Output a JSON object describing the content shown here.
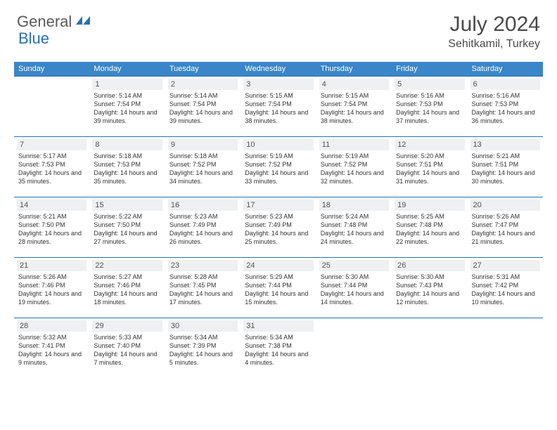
{
  "logo": {
    "main": "General",
    "sub": "Blue"
  },
  "title": "July 2024",
  "location": "Sehitkamil, Turkey",
  "colors": {
    "header_bg": "#3a86c8",
    "header_text": "#ffffff",
    "rule": "#2a6fb5",
    "daynum_bg": "#eef0f2",
    "body_text": "#333333",
    "logo_main": "#5a5a5a",
    "logo_sub": "#2a6fb5"
  },
  "weekdays": [
    "Sunday",
    "Monday",
    "Tuesday",
    "Wednesday",
    "Thursday",
    "Friday",
    "Saturday"
  ],
  "weeks": [
    [
      null,
      {
        "n": "1",
        "sr": "5:14 AM",
        "ss": "7:54 PM",
        "dl": "14 hours and 39 minutes."
      },
      {
        "n": "2",
        "sr": "5:14 AM",
        "ss": "7:54 PM",
        "dl": "14 hours and 39 minutes."
      },
      {
        "n": "3",
        "sr": "5:15 AM",
        "ss": "7:54 PM",
        "dl": "14 hours and 38 minutes."
      },
      {
        "n": "4",
        "sr": "5:15 AM",
        "ss": "7:54 PM",
        "dl": "14 hours and 38 minutes."
      },
      {
        "n": "5",
        "sr": "5:16 AM",
        "ss": "7:53 PM",
        "dl": "14 hours and 37 minutes."
      },
      {
        "n": "6",
        "sr": "5:16 AM",
        "ss": "7:53 PM",
        "dl": "14 hours and 36 minutes."
      }
    ],
    [
      {
        "n": "7",
        "sr": "5:17 AM",
        "ss": "7:53 PM",
        "dl": "14 hours and 35 minutes."
      },
      {
        "n": "8",
        "sr": "5:18 AM",
        "ss": "7:53 PM",
        "dl": "14 hours and 35 minutes."
      },
      {
        "n": "9",
        "sr": "5:18 AM",
        "ss": "7:52 PM",
        "dl": "14 hours and 34 minutes."
      },
      {
        "n": "10",
        "sr": "5:19 AM",
        "ss": "7:52 PM",
        "dl": "14 hours and 33 minutes."
      },
      {
        "n": "11",
        "sr": "5:19 AM",
        "ss": "7:52 PM",
        "dl": "14 hours and 32 minutes."
      },
      {
        "n": "12",
        "sr": "5:20 AM",
        "ss": "7:51 PM",
        "dl": "14 hours and 31 minutes."
      },
      {
        "n": "13",
        "sr": "5:21 AM",
        "ss": "7:51 PM",
        "dl": "14 hours and 30 minutes."
      }
    ],
    [
      {
        "n": "14",
        "sr": "5:21 AM",
        "ss": "7:50 PM",
        "dl": "14 hours and 28 minutes."
      },
      {
        "n": "15",
        "sr": "5:22 AM",
        "ss": "7:50 PM",
        "dl": "14 hours and 27 minutes."
      },
      {
        "n": "16",
        "sr": "5:23 AM",
        "ss": "7:49 PM",
        "dl": "14 hours and 26 minutes."
      },
      {
        "n": "17",
        "sr": "5:23 AM",
        "ss": "7:49 PM",
        "dl": "14 hours and 25 minutes."
      },
      {
        "n": "18",
        "sr": "5:24 AM",
        "ss": "7:48 PM",
        "dl": "14 hours and 24 minutes."
      },
      {
        "n": "19",
        "sr": "5:25 AM",
        "ss": "7:48 PM",
        "dl": "14 hours and 22 minutes."
      },
      {
        "n": "20",
        "sr": "5:26 AM",
        "ss": "7:47 PM",
        "dl": "14 hours and 21 minutes."
      }
    ],
    [
      {
        "n": "21",
        "sr": "5:26 AM",
        "ss": "7:46 PM",
        "dl": "14 hours and 19 minutes."
      },
      {
        "n": "22",
        "sr": "5:27 AM",
        "ss": "7:46 PM",
        "dl": "14 hours and 18 minutes."
      },
      {
        "n": "23",
        "sr": "5:28 AM",
        "ss": "7:45 PM",
        "dl": "14 hours and 17 minutes."
      },
      {
        "n": "24",
        "sr": "5:29 AM",
        "ss": "7:44 PM",
        "dl": "14 hours and 15 minutes."
      },
      {
        "n": "25",
        "sr": "5:30 AM",
        "ss": "7:44 PM",
        "dl": "14 hours and 14 minutes."
      },
      {
        "n": "26",
        "sr": "5:30 AM",
        "ss": "7:43 PM",
        "dl": "14 hours and 12 minutes."
      },
      {
        "n": "27",
        "sr": "5:31 AM",
        "ss": "7:42 PM",
        "dl": "14 hours and 10 minutes."
      }
    ],
    [
      {
        "n": "28",
        "sr": "5:32 AM",
        "ss": "7:41 PM",
        "dl": "14 hours and 9 minutes."
      },
      {
        "n": "29",
        "sr": "5:33 AM",
        "ss": "7:40 PM",
        "dl": "14 hours and 7 minutes."
      },
      {
        "n": "30",
        "sr": "5:34 AM",
        "ss": "7:39 PM",
        "dl": "14 hours and 5 minutes."
      },
      {
        "n": "31",
        "sr": "5:34 AM",
        "ss": "7:38 PM",
        "dl": "14 hours and 4 minutes."
      },
      null,
      null,
      null
    ]
  ],
  "labels": {
    "sunrise": "Sunrise:",
    "sunset": "Sunset:",
    "daylight": "Daylight:"
  }
}
